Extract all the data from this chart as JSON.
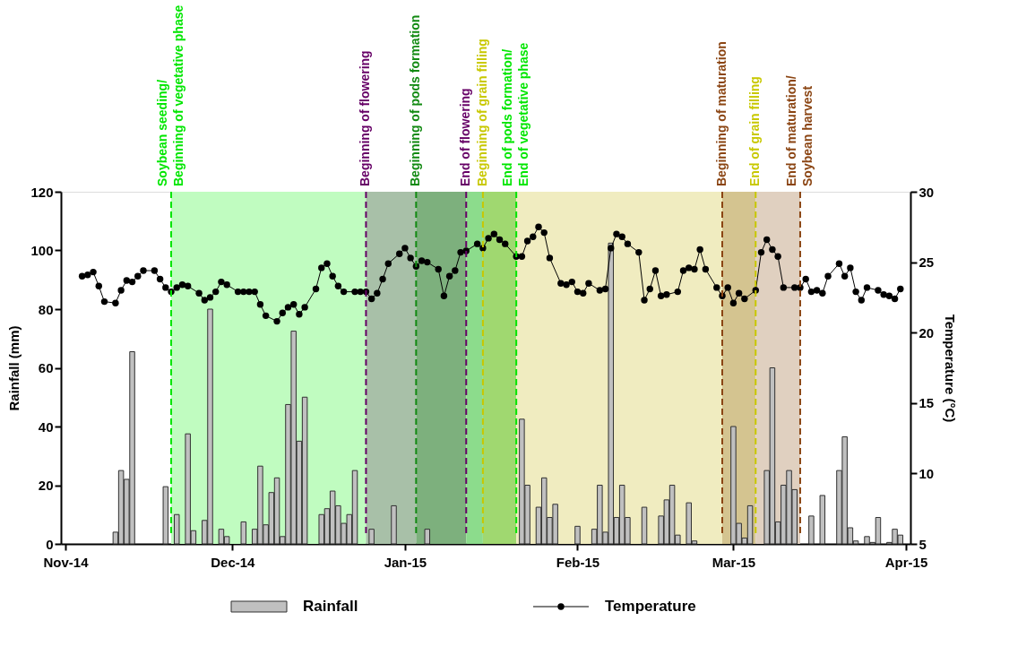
{
  "chart_data": {
    "type": "bar",
    "ylabel": "Rainfall (mm)",
    "y2label": "Temperature (°C)",
    "xlim": [
      "2014-11-01",
      "2015-04-01"
    ],
    "xticks": [
      {
        "value": "2014-11-01",
        "label": "Nov-14"
      },
      {
        "value": "2014-12-01",
        "label": "Dec-14"
      },
      {
        "value": "2015-01-01",
        "label": "Jan-15"
      },
      {
        "value": "2015-02-01",
        "label": "Feb-15"
      },
      {
        "value": "2015-03-01",
        "label": "Mar-15"
      },
      {
        "value": "2015-04-01",
        "label": "Apr-15"
      }
    ],
    "ylim": [
      0,
      120
    ],
    "yticks": [
      0,
      20,
      40,
      60,
      80,
      100,
      120
    ],
    "y2lim": [
      5,
      30
    ],
    "y2ticks": [
      5,
      10,
      15,
      20,
      25,
      30
    ],
    "grid": false,
    "legend": "bottom",
    "marker": "circle",
    "series": [
      {
        "name": "Rainfall",
        "color": "#c0c0c0",
        "x": [
          "2014-11-10",
          "2014-11-11",
          "2014-11-12",
          "2014-11-13",
          "2014-11-19",
          "2014-11-21",
          "2014-11-23",
          "2014-11-24",
          "2014-11-26",
          "2014-11-27",
          "2014-11-29",
          "2014-11-30",
          "2014-12-03",
          "2014-12-05",
          "2014-12-06",
          "2014-12-07",
          "2014-12-08",
          "2014-12-09",
          "2014-12-10",
          "2014-12-11",
          "2014-12-12",
          "2014-12-13",
          "2014-12-14",
          "2014-12-17",
          "2014-12-18",
          "2014-12-19",
          "2014-12-20",
          "2014-12-21",
          "2014-12-22",
          "2014-12-23",
          "2014-12-26",
          "2014-12-30",
          "2015-01-05",
          "2015-01-22",
          "2015-01-23",
          "2015-01-25",
          "2015-01-26",
          "2015-01-27",
          "2015-01-28",
          "2015-02-01",
          "2015-02-04",
          "2015-02-05",
          "2015-02-06",
          "2015-02-07",
          "2015-02-08",
          "2015-02-09",
          "2015-02-10",
          "2015-02-13",
          "2015-02-16",
          "2015-02-17",
          "2015-02-18",
          "2015-02-19",
          "2015-02-21",
          "2015-02-22",
          "2015-03-01",
          "2015-03-02",
          "2015-03-03",
          "2015-03-04",
          "2015-03-07",
          "2015-03-08",
          "2015-03-09",
          "2015-03-10",
          "2015-03-11",
          "2015-03-12",
          "2015-03-15",
          "2015-03-17",
          "2015-03-20",
          "2015-03-21",
          "2015-03-22",
          "2015-03-23",
          "2015-03-25",
          "2015-03-26",
          "2015-03-27",
          "2015-03-29",
          "2015-03-30",
          "2015-03-31"
        ],
        "values": [
          4,
          25,
          22,
          65.5,
          19.5,
          10,
          37.5,
          4.5,
          8,
          80,
          5,
          2.5,
          7.5,
          5,
          26.5,
          6.5,
          17.5,
          22.5,
          2.5,
          47.5,
          72.5,
          35,
          50,
          10,
          12,
          18,
          13,
          7,
          10,
          25,
          5,
          13,
          5,
          42.5,
          20,
          12.5,
          22.5,
          9,
          13.5,
          6,
          5,
          20,
          4,
          102.5,
          9,
          20,
          9,
          12.5,
          9.5,
          15,
          20,
          3,
          14,
          1,
          40,
          7,
          2,
          13,
          25,
          60,
          7.5,
          20,
          25,
          18.5,
          9.5,
          16.5,
          25,
          36.5,
          5.5,
          1,
          2.5,
          0.5,
          9,
          0.5,
          5,
          3
        ]
      },
      {
        "name": "Temperature",
        "type": "line",
        "axis": "y2",
        "color": "#000000",
        "x": [
          "2014-11-04",
          "2014-11-05",
          "2014-11-06",
          "2014-11-07",
          "2014-11-08",
          "2014-11-10",
          "2014-11-11",
          "2014-11-12",
          "2014-11-13",
          "2014-11-14",
          "2014-11-15",
          "2014-11-17",
          "2014-11-18",
          "2014-11-19",
          "2014-11-20",
          "2014-11-21",
          "2014-11-22",
          "2014-11-23",
          "2014-11-25",
          "2014-11-26",
          "2014-11-27",
          "2014-11-28",
          "2014-11-29",
          "2014-11-30",
          "2014-12-02",
          "2014-12-03",
          "2014-12-04",
          "2014-12-05",
          "2014-12-06",
          "2014-12-07",
          "2014-12-09",
          "2014-12-10",
          "2014-12-11",
          "2014-12-12",
          "2014-12-13",
          "2014-12-14",
          "2014-12-16",
          "2014-12-17",
          "2014-12-18",
          "2014-12-19",
          "2014-12-20",
          "2014-12-21",
          "2014-12-23",
          "2014-12-24",
          "2014-12-25",
          "2014-12-26",
          "2014-12-27",
          "2014-12-28",
          "2014-12-29",
          "2014-12-31",
          "2015-01-01",
          "2015-01-02",
          "2015-01-03",
          "2015-01-04",
          "2015-01-05",
          "2015-01-07",
          "2015-01-08",
          "2015-01-09",
          "2015-01-10",
          "2015-01-11",
          "2015-01-12",
          "2015-01-14",
          "2015-01-15",
          "2015-01-16",
          "2015-01-17",
          "2015-01-18",
          "2015-01-19",
          "2015-01-21",
          "2015-01-22",
          "2015-01-23",
          "2015-01-24",
          "2015-01-25",
          "2015-01-26",
          "2015-01-27",
          "2015-01-29",
          "2015-01-30",
          "2015-01-31",
          "2015-02-01",
          "2015-02-02",
          "2015-02-03",
          "2015-02-05",
          "2015-02-06",
          "2015-02-07",
          "2015-02-08",
          "2015-02-09",
          "2015-02-10",
          "2015-02-12",
          "2015-02-13",
          "2015-02-14",
          "2015-02-15",
          "2015-02-16",
          "2015-02-17",
          "2015-02-19",
          "2015-02-20",
          "2015-02-21",
          "2015-02-22",
          "2015-02-23",
          "2015-02-24",
          "2015-02-26",
          "2015-02-27",
          "2015-02-28",
          "2015-03-01",
          "2015-03-02",
          "2015-03-03",
          "2015-03-05",
          "2015-03-06",
          "2015-03-07",
          "2015-03-08",
          "2015-03-09",
          "2015-03-10",
          "2015-03-12",
          "2015-03-13",
          "2015-03-14",
          "2015-03-15",
          "2015-03-16",
          "2015-03-17",
          "2015-03-18",
          "2015-03-20",
          "2015-03-21",
          "2015-03-22",
          "2015-03-23",
          "2015-03-24",
          "2015-03-25",
          "2015-03-27",
          "2015-03-28",
          "2015-03-29",
          "2015-03-30",
          "2015-03-31"
        ],
        "values": [
          24.0,
          24.1,
          24.3,
          23.3,
          22.2,
          22.1,
          23.0,
          23.7,
          23.6,
          24.0,
          24.4,
          24.4,
          23.8,
          23.2,
          22.9,
          23.2,
          23.4,
          23.3,
          22.8,
          22.3,
          22.5,
          22.9,
          23.6,
          23.4,
          22.9,
          22.9,
          22.9,
          22.9,
          22.0,
          21.2,
          20.8,
          21.4,
          21.8,
          22.0,
          21.3,
          21.8,
          23.1,
          24.6,
          24.9,
          24.0,
          23.3,
          22.9,
          22.9,
          22.9,
          22.9,
          22.4,
          22.8,
          23.8,
          24.9,
          25.6,
          26.0,
          25.3,
          24.7,
          25.1,
          25.0,
          24.5,
          22.6,
          24.0,
          24.4,
          25.7,
          25.8,
          26.3,
          26.0,
          26.7,
          27.0,
          26.6,
          26.3,
          25.4,
          25.4,
          26.5,
          26.8,
          27.5,
          27.1,
          25.3,
          23.5,
          23.4,
          23.6,
          22.9,
          22.8,
          23.5,
          23.0,
          23.1,
          26.0,
          27.0,
          26.8,
          26.3,
          25.7,
          22.3,
          23.1,
          24.4,
          22.6,
          22.7,
          22.9,
          24.4,
          24.6,
          24.5,
          25.9,
          24.5,
          23.2,
          22.6,
          23.2,
          22.1,
          22.8,
          22.4,
          23.0,
          25.7,
          26.6,
          25.9,
          25.4,
          23.2,
          23.2,
          23.2,
          23.8,
          22.9,
          23.0,
          22.8,
          24.0,
          24.9,
          24.0,
          24.6,
          22.9,
          22.3,
          23.2,
          23.0,
          22.7,
          22.6,
          22.4,
          23.1
        ]
      }
    ],
    "bands": [
      {
        "axis": "x",
        "from": "2014-11-20",
        "to": "2014-12-25",
        "color": "#c0fcc0"
      },
      {
        "axis": "x",
        "from": "2014-12-25",
        "to": "2015-01-03",
        "color": "#a8c0a8"
      },
      {
        "axis": "x",
        "from": "2015-01-03",
        "to": "2015-01-12",
        "color": "#7db07d"
      },
      {
        "axis": "x",
        "from": "2015-01-12",
        "to": "2015-01-15",
        "color": "#8cdc8c"
      },
      {
        "axis": "x",
        "from": "2015-01-15",
        "to": "2015-01-21",
        "color": "#a0d870"
      },
      {
        "axis": "x",
        "from": "2015-01-21",
        "to": "2015-02-27",
        "color": "#f0ecc0"
      },
      {
        "axis": "x",
        "from": "2015-02-27",
        "to": "2015-03-05",
        "color": "#d4c490"
      },
      {
        "axis": "x",
        "from": "2015-03-05",
        "to": "2015-03-13",
        "color": "#e0d0c0"
      }
    ],
    "ref_lines": [
      {
        "axis": "x",
        "value": "2014-11-20",
        "label": "Soybean seeding/\nBeginning of vegetative phase",
        "color": "#00e600",
        "line_style": "dashed"
      },
      {
        "axis": "x",
        "value": "2014-12-25",
        "label": "Beginning of flowering",
        "color": "#660066",
        "line_style": "dashed"
      },
      {
        "axis": "x",
        "value": "2015-01-03",
        "label": "Beginning of pods formation",
        "color": "#128a12",
        "line_style": "dashed"
      },
      {
        "axis": "x",
        "value": "2015-01-12",
        "label": "End of flowering",
        "color": "#660066",
        "line_style": "dashed"
      },
      {
        "axis": "x",
        "value": "2015-01-15",
        "label": "Beginning of grain filling",
        "color": "#c8c800",
        "line_style": "dashed"
      },
      {
        "axis": "x",
        "value": "2015-01-21",
        "label": "End of pods formation/\nEnd of vegetative phase",
        "color": "#00e600",
        "line_style": "dashed"
      },
      {
        "axis": "x",
        "value": "2015-02-27",
        "label": "Beginning of maturation",
        "color": "#8b4513",
        "line_style": "dashed"
      },
      {
        "axis": "x",
        "value": "2015-03-05",
        "label": "End of grain filling",
        "color": "#c8c800",
        "line_style": "dashed"
      },
      {
        "axis": "x",
        "value": "2015-03-13",
        "label": "End of maturation/\nSoybean harvest",
        "color": "#8b4513",
        "line_style": "dashed"
      }
    ]
  }
}
